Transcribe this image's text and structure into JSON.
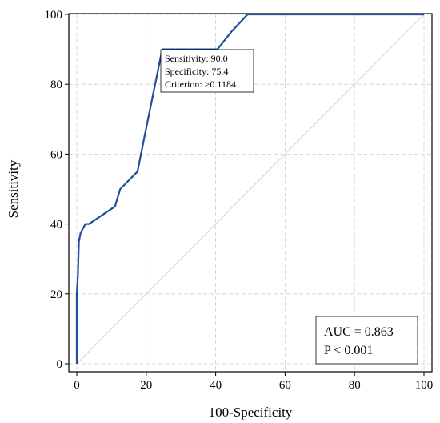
{
  "chart_data": {
    "type": "line",
    "xlabel": "100-Specificity",
    "ylabel": "Sensitivity",
    "xlim": [
      0,
      100
    ],
    "ylim": [
      0,
      100
    ],
    "xticks": [
      "0",
      "20",
      "40",
      "60",
      "80",
      "100"
    ],
    "yticks": [
      "0",
      "20",
      "40",
      "60",
      "80",
      "100"
    ],
    "grid": true,
    "series": [
      {
        "name": "",
        "color": "#1f4e9c",
        "x": [
          0,
          0,
          0.3,
          0.6,
          1.1,
          2.5,
          3.5,
          11,
          12.5,
          17.5,
          19.5,
          24.6,
          40.5,
          44.5,
          49.2,
          100
        ],
        "y": [
          0,
          20,
          25,
          35,
          37.5,
          40,
          40,
          45,
          50,
          55,
          65,
          90,
          90,
          95,
          100,
          100
        ]
      },
      {
        "name": "",
        "color": "#e8c8c8",
        "x": [
          0,
          100
        ],
        "y": [
          0,
          100
        ]
      }
    ],
    "annotations": {
      "point": {
        "x": 24.6,
        "y": 90
      },
      "lines": [
        "Sensitivity: 90.0",
        "Specificity: 75.4",
        "Criterion: >0.1184"
      ]
    },
    "stats": {
      "auc": "AUC = 0.863",
      "p": "P < 0.001"
    }
  }
}
